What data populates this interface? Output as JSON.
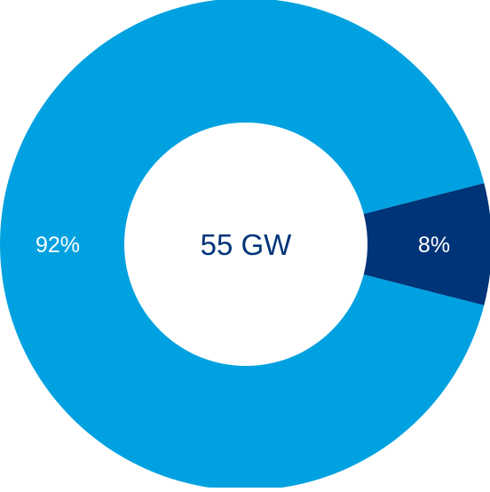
{
  "chart_data": {
    "type": "pie",
    "variant": "donut",
    "center_label": "55 GW",
    "slices": [
      {
        "label": "92%",
        "value": 92,
        "color": "#00A1E0"
      },
      {
        "label": "8%",
        "value": 8,
        "color": "#003479"
      }
    ]
  },
  "colors": {
    "background": "#FFFFFF",
    "center_text": "#003479",
    "slice_text": "#FFFFFF"
  }
}
